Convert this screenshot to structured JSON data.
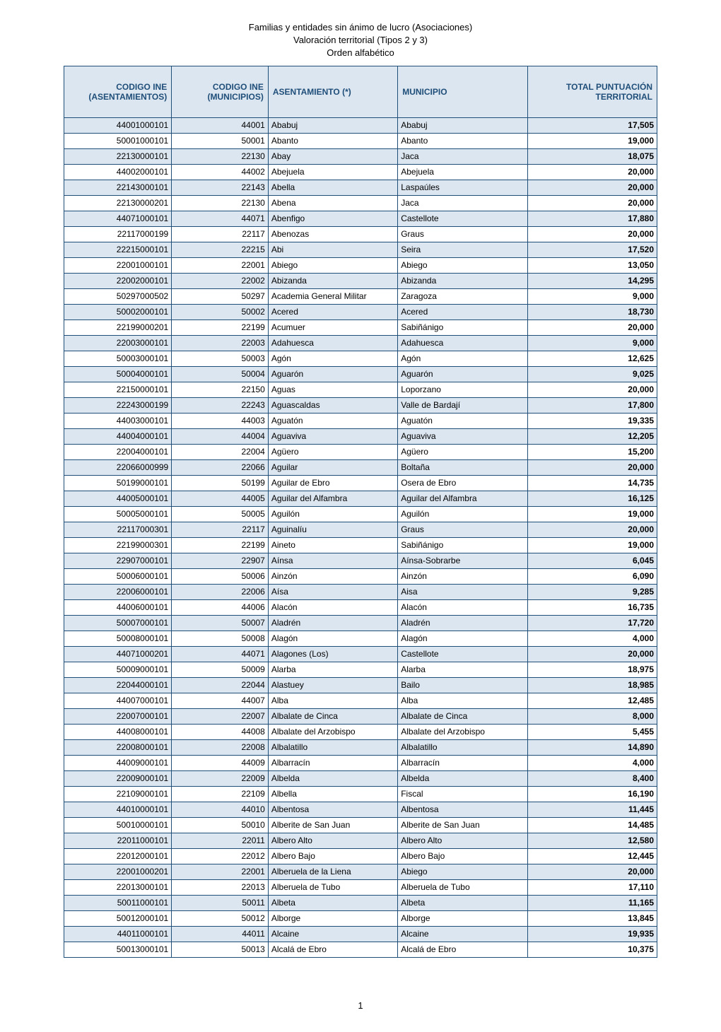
{
  "title": {
    "line1": "Familias y entidades sin ánimo de lucro (Asociaciones)",
    "line2": "Valoración territorial (Tipos 2 y 3)",
    "line3": "Orden alfabético"
  },
  "columns": [
    "CODIGO INE (ASENTAMIENTOS)",
    "CODIGO INE (MUNICIPIOS)",
    "ASENTAMIENTO (*)",
    "MUNICIPIO",
    "TOTAL PUNTUACIÓN TERRITORIAL"
  ],
  "rows": [
    [
      "44001000101",
      "44001",
      "Ababuj",
      "Ababuj",
      "17,505"
    ],
    [
      "50001000101",
      "50001",
      "Abanto",
      "Abanto",
      "19,000"
    ],
    [
      "22130000101",
      "22130",
      "Abay",
      "Jaca",
      "18,075"
    ],
    [
      "44002000101",
      "44002",
      "Abejuela",
      "Abejuela",
      "20,000"
    ],
    [
      "22143000101",
      "22143",
      "Abella",
      "Laspaúles",
      "20,000"
    ],
    [
      "22130000201",
      "22130",
      "Abena",
      "Jaca",
      "20,000"
    ],
    [
      "44071000101",
      "44071",
      "Abenfigo",
      "Castellote",
      "17,880"
    ],
    [
      "22117000199",
      "22117",
      "Abenozas",
      "Graus",
      "20,000"
    ],
    [
      "22215000101",
      "22215",
      "Abi",
      "Seira",
      "17,520"
    ],
    [
      "22001000101",
      "22001",
      "Abiego",
      "Abiego",
      "13,050"
    ],
    [
      "22002000101",
      "22002",
      "Abizanda",
      "Abizanda",
      "14,295"
    ],
    [
      "50297000502",
      "50297",
      "Academia General Militar",
      "Zaragoza",
      "9,000"
    ],
    [
      "50002000101",
      "50002",
      "Acered",
      "Acered",
      "18,730"
    ],
    [
      "22199000201",
      "22199",
      "Acumuer",
      "Sabiñánigo",
      "20,000"
    ],
    [
      "22003000101",
      "22003",
      "Adahuesca",
      "Adahuesca",
      "9,000"
    ],
    [
      "50003000101",
      "50003",
      "Agón",
      "Agón",
      "12,625"
    ],
    [
      "50004000101",
      "50004",
      "Aguarón",
      "Aguarón",
      "9,025"
    ],
    [
      "22150000101",
      "22150",
      "Aguas",
      "Loporzano",
      "20,000"
    ],
    [
      "22243000199",
      "22243",
      "Aguascaldas",
      "Valle de Bardají",
      "17,800"
    ],
    [
      "44003000101",
      "44003",
      "Aguatón",
      "Aguatón",
      "19,335"
    ],
    [
      "44004000101",
      "44004",
      "Aguaviva",
      "Aguaviva",
      "12,205"
    ],
    [
      "22004000101",
      "22004",
      "Agüero",
      "Agüero",
      "15,200"
    ],
    [
      "22066000999",
      "22066",
      "Aguilar",
      "Boltaña",
      "20,000"
    ],
    [
      "50199000101",
      "50199",
      "Aguilar de Ebro",
      "Osera de Ebro",
      "14,735"
    ],
    [
      "44005000101",
      "44005",
      "Aguilar del Alfambra",
      "Aguilar del Alfambra",
      "16,125"
    ],
    [
      "50005000101",
      "50005",
      "Aguilón",
      "Aguilón",
      "19,000"
    ],
    [
      "22117000301",
      "22117",
      "Aguinalíu",
      "Graus",
      "20,000"
    ],
    [
      "22199000301",
      "22199",
      "Aineto",
      "Sabiñánigo",
      "19,000"
    ],
    [
      "22907000101",
      "22907",
      "Aínsa",
      "Aínsa-Sobrarbe",
      "6,045"
    ],
    [
      "50006000101",
      "50006",
      "Ainzón",
      "Ainzón",
      "6,090"
    ],
    [
      "22006000101",
      "22006",
      "Aísa",
      "Aisa",
      "9,285"
    ],
    [
      "44006000101",
      "44006",
      "Alacón",
      "Alacón",
      "16,735"
    ],
    [
      "50007000101",
      "50007",
      "Aladrén",
      "Aladrén",
      "17,720"
    ],
    [
      "50008000101",
      "50008",
      "Alagón",
      "Alagón",
      "4,000"
    ],
    [
      "44071000201",
      "44071",
      "Alagones (Los)",
      "Castellote",
      "20,000"
    ],
    [
      "50009000101",
      "50009",
      "Alarba",
      "Alarba",
      "18,975"
    ],
    [
      "22044000101",
      "22044",
      "Alastuey",
      "Bailo",
      "18,985"
    ],
    [
      "44007000101",
      "44007",
      "Alba",
      "Alba",
      "12,485"
    ],
    [
      "22007000101",
      "22007",
      "Albalate de Cinca",
      "Albalate de Cinca",
      "8,000"
    ],
    [
      "44008000101",
      "44008",
      "Albalate del Arzobispo",
      "Albalate del Arzobispo",
      "5,455"
    ],
    [
      "22008000101",
      "22008",
      "Albalatillo",
      "Albalatillo",
      "14,890"
    ],
    [
      "44009000101",
      "44009",
      "Albarracín",
      "Albarracín",
      "4,000"
    ],
    [
      "22009000101",
      "22009",
      "Albelda",
      "Albelda",
      "8,400"
    ],
    [
      "22109000101",
      "22109",
      "Albella",
      "Fiscal",
      "16,190"
    ],
    [
      "44010000101",
      "44010",
      "Albentosa",
      "Albentosa",
      "11,445"
    ],
    [
      "50010000101",
      "50010",
      "Alberite de San Juan",
      "Alberite de San Juan",
      "14,485"
    ],
    [
      "22011000101",
      "22011",
      "Albero Alto",
      "Albero Alto",
      "12,580"
    ],
    [
      "22012000101",
      "22012",
      "Albero Bajo",
      "Albero Bajo",
      "12,445"
    ],
    [
      "22001000201",
      "22001",
      "Alberuela de la Liena",
      "Abiego",
      "20,000"
    ],
    [
      "22013000101",
      "22013",
      "Alberuela de Tubo",
      "Alberuela de Tubo",
      "17,110"
    ],
    [
      "50011000101",
      "50011",
      "Albeta",
      "Albeta",
      "11,165"
    ],
    [
      "50012000101",
      "50012",
      "Alborge",
      "Alborge",
      "13,845"
    ],
    [
      "44011000101",
      "44011",
      "Alcaine",
      "Alcaine",
      "19,935"
    ],
    [
      "50013000101",
      "50013",
      "Alcalá de Ebro",
      "Alcalá de Ebro",
      "10,375"
    ]
  ],
  "page_number": "1",
  "colors": {
    "header_bg": "#dce6f0",
    "header_text": "#1f4e79",
    "border": "#1f4e79",
    "row_odd": "#dce6f0",
    "row_even": "#ffffff"
  }
}
